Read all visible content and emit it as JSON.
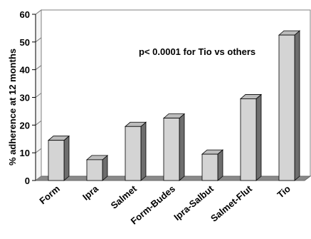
{
  "chart_data": {
    "type": "bar",
    "style": "3d-column",
    "categories": [
      "Form",
      "Ipra",
      "Salmet",
      "Form-Budes",
      "Ipra-Salbut",
      "Salmet-Flut",
      "Tio"
    ],
    "values": [
      14.5,
      7.5,
      19.5,
      22.5,
      9.5,
      29.5,
      52.5
    ],
    "ylabel": "% adherence at 12 months",
    "xlabel": "",
    "title": "",
    "ylim": [
      0,
      60
    ],
    "yticks": [
      "0",
      "10",
      "20",
      "30",
      "40",
      "50",
      "60"
    ],
    "grid": false,
    "legend": "none",
    "annotation": "p< 0.0001 for Tio vs others",
    "colors": {
      "bar_front": "#d4d4d4",
      "bar_side": "#6e6e6e",
      "bar_top": "#bcbcbc",
      "floor": "#8a8a8a",
      "back_wall": "#ffffff",
      "axis": "#808080"
    }
  }
}
